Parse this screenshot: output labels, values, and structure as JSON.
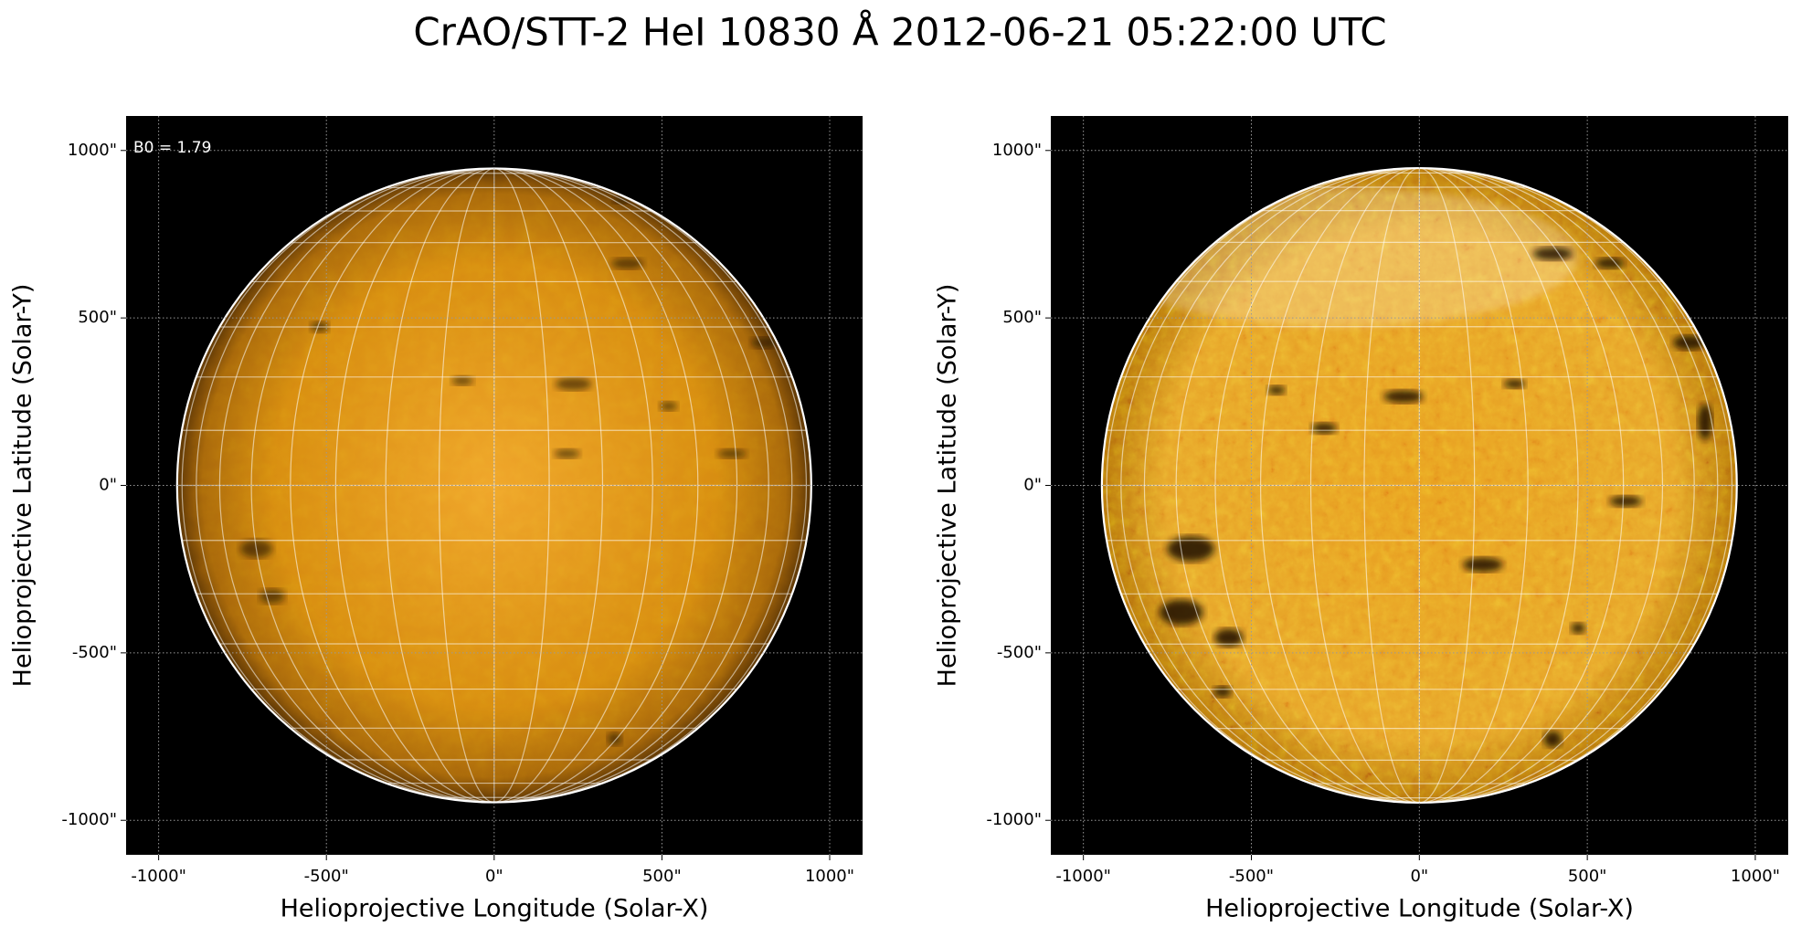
{
  "title": "CrAO/STT-2 HeI 10830 Å 2012-06-21 05:22:00 UTC",
  "chart_data": [
    {
      "type": "image",
      "xlabel": "Helioprojective Longitude (Solar-X)",
      "ylabel": "Helioprojective Latitude (Solar-Y)",
      "annotation": "B0 = 1.79",
      "xlim": [
        -1097,
        1098
      ],
      "ylim": [
        -1103,
        1103
      ],
      "xticks": [
        {
          "value": -1000,
          "label": "-1000\""
        },
        {
          "value": -500,
          "label": "-500\""
        },
        {
          "value": 0,
          "label": "0\""
        },
        {
          "value": 500,
          "label": "500\""
        },
        {
          "value": 1000,
          "label": "1000\""
        }
      ],
      "yticks": [
        {
          "value": -1000,
          "label": "-1000\""
        },
        {
          "value": -500,
          "label": "-500\""
        },
        {
          "value": 0,
          "label": "0\""
        },
        {
          "value": 500,
          "label": "500\""
        },
        {
          "value": 1000,
          "label": "1000\""
        }
      ],
      "grid": true
    },
    {
      "type": "image",
      "xlabel": "Helioprojective Longitude (Solar-X)",
      "ylabel": "Helioprojective Latitude (Solar-Y)",
      "xlim": [
        -1097,
        1098
      ],
      "ylim": [
        -1103,
        1103
      ],
      "xticks": [
        {
          "value": -1000,
          "label": "-1000\""
        },
        {
          "value": -500,
          "label": "-500\""
        },
        {
          "value": 0,
          "label": "0\""
        },
        {
          "value": 500,
          "label": "500\""
        },
        {
          "value": 1000,
          "label": "1000\""
        }
      ],
      "yticks": [
        {
          "value": -1000,
          "label": "-1000\""
        },
        {
          "value": -500,
          "label": "-500\""
        },
        {
          "value": 0,
          "label": "0\""
        },
        {
          "value": 500,
          "label": "500\""
        },
        {
          "value": 1000,
          "label": "1000\""
        }
      ],
      "grid": true
    }
  ]
}
